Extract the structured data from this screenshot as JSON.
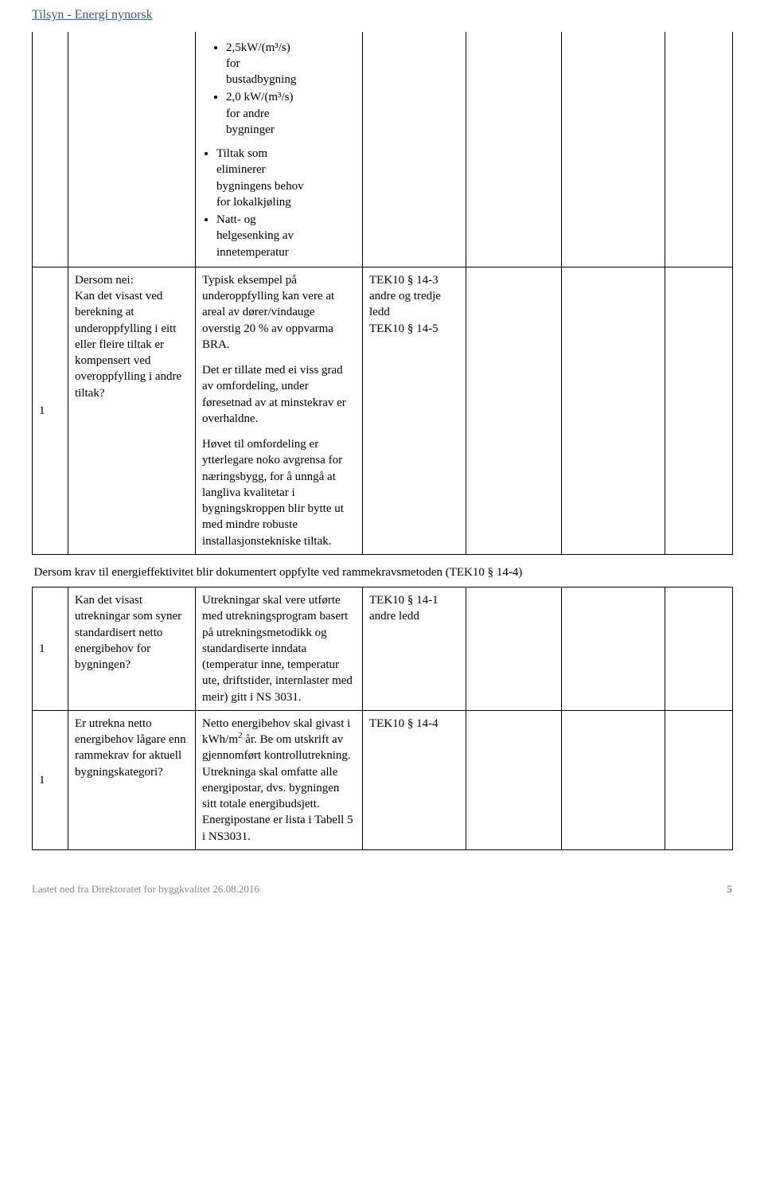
{
  "header": {
    "link_text": "Tilsyn - Energi nynorsk"
  },
  "rows": {
    "r0": {
      "bullets_lvl2": [
        {
          "a": "2,5kW/(m³/s)",
          "b": "for",
          "c": "bustadbygning"
        },
        {
          "a": "2,0 kW/(m³/s)",
          "b": "for andre",
          "c": "bygninger"
        }
      ],
      "bullets_lvl1": [
        {
          "a": "Tiltak som",
          "b": "eliminerer",
          "c": "bygningens behov",
          "d": "for lokalkjøling"
        },
        {
          "a": "Natt- og",
          "b": "helgesenking av",
          "c": "innetemperatur"
        }
      ]
    },
    "r1": {
      "num": "1",
      "col1": "Dersom nei:\nKan det visast ved berekning at underoppfylling i eitt eller fleire tiltak er kompensert ved overoppfylling i andre tiltak?",
      "col2a": "Typisk eksempel på underoppfylling kan vere at areal av dører/vindauge overstig 20 % av oppvarma BRA.",
      "col2b": "Det er tillate med ei viss grad av omfordeling, under føresetnad av at minstekrav er overhaldne.",
      "col2c": "Høvet til omfordeling er ytterlegare noko avgrensa for næringsbygg, for å unngå at langliva kvalitetar i bygningskroppen blir bytte ut med mindre robuste installasjonstekniske tiltak.",
      "col3": "TEK10 § 14-3 andre og tredje ledd\nTEK10 § 14-5"
    },
    "section": "Dersom krav til energieffektivitet blir dokumentert oppfylte ved rammekravsmetoden (TEK10 § 14-4)",
    "r2": {
      "num": "1",
      "col1": "Kan det visast utrekningar som syner standardisert netto energibehov for bygningen?",
      "col2": "Utrekningar skal vere utførte med utrekningsprogram basert på utrekningsmetodikk og standardiserte inndata (temperatur inne, temperatur ute, driftstider, internlaster med meir) gitt i NS 3031.",
      "col3": "TEK10 § 14-1 andre ledd"
    },
    "r3": {
      "num": "1",
      "col1": "Er utrekna netto energibehov lågare enn rammekrav for aktuell bygningskategori?",
      "col2a": "Netto energibehov skal givast i kWh/m",
      "col2sup": "2",
      "col2b": " år. Be om utskrift av gjennomført kontrollutrekning. Utrekninga skal omfatte alle energipostar, dvs. bygningen sitt totale energibudsjett. Energipostane er lista i Tabell 5 i NS3031.",
      "col3": "TEK10 § 14-4"
    }
  },
  "footer": {
    "left": "Lastet ned fra Direktoratet for byggkvalitet 26.08.2016",
    "page": "5"
  }
}
